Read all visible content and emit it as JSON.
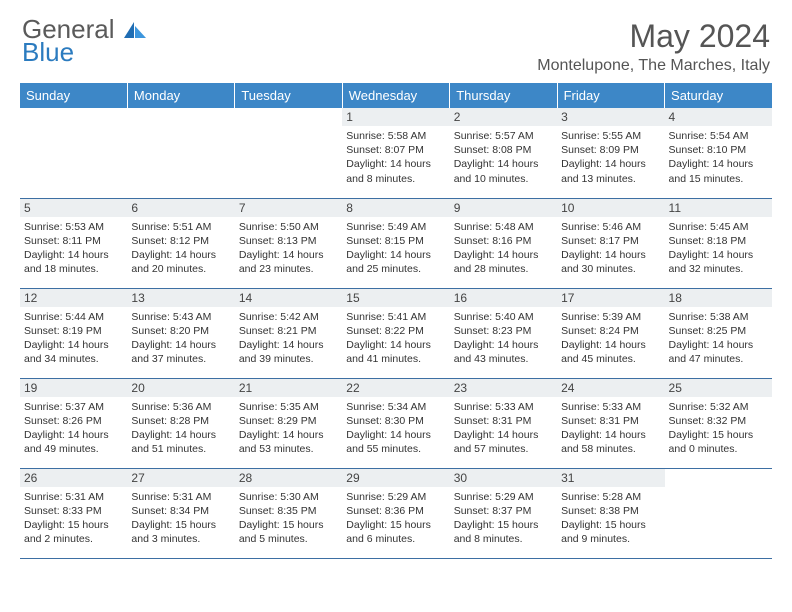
{
  "logo": {
    "line1": "General",
    "line2": "Blue"
  },
  "title": "May 2024",
  "location": "Montelupone, The Marches, Italy",
  "colors": {
    "header_bg": "#3d87c7",
    "header_text": "#ffffff",
    "daynum_bg": "#eceff1",
    "border": "#3d6fa3",
    "logo_gray": "#5a5a5a",
    "logo_blue": "#2b7bbf"
  },
  "weekdays": [
    "Sunday",
    "Monday",
    "Tuesday",
    "Wednesday",
    "Thursday",
    "Friday",
    "Saturday"
  ],
  "weeks": [
    [
      {
        "n": "",
        "sr": "",
        "ss": "",
        "dl": ""
      },
      {
        "n": "",
        "sr": "",
        "ss": "",
        "dl": ""
      },
      {
        "n": "",
        "sr": "",
        "ss": "",
        "dl": ""
      },
      {
        "n": "1",
        "sr": "Sunrise: 5:58 AM",
        "ss": "Sunset: 8:07 PM",
        "dl": "Daylight: 14 hours and 8 minutes."
      },
      {
        "n": "2",
        "sr": "Sunrise: 5:57 AM",
        "ss": "Sunset: 8:08 PM",
        "dl": "Daylight: 14 hours and 10 minutes."
      },
      {
        "n": "3",
        "sr": "Sunrise: 5:55 AM",
        "ss": "Sunset: 8:09 PM",
        "dl": "Daylight: 14 hours and 13 minutes."
      },
      {
        "n": "4",
        "sr": "Sunrise: 5:54 AM",
        "ss": "Sunset: 8:10 PM",
        "dl": "Daylight: 14 hours and 15 minutes."
      }
    ],
    [
      {
        "n": "5",
        "sr": "Sunrise: 5:53 AM",
        "ss": "Sunset: 8:11 PM",
        "dl": "Daylight: 14 hours and 18 minutes."
      },
      {
        "n": "6",
        "sr": "Sunrise: 5:51 AM",
        "ss": "Sunset: 8:12 PM",
        "dl": "Daylight: 14 hours and 20 minutes."
      },
      {
        "n": "7",
        "sr": "Sunrise: 5:50 AM",
        "ss": "Sunset: 8:13 PM",
        "dl": "Daylight: 14 hours and 23 minutes."
      },
      {
        "n": "8",
        "sr": "Sunrise: 5:49 AM",
        "ss": "Sunset: 8:15 PM",
        "dl": "Daylight: 14 hours and 25 minutes."
      },
      {
        "n": "9",
        "sr": "Sunrise: 5:48 AM",
        "ss": "Sunset: 8:16 PM",
        "dl": "Daylight: 14 hours and 28 minutes."
      },
      {
        "n": "10",
        "sr": "Sunrise: 5:46 AM",
        "ss": "Sunset: 8:17 PM",
        "dl": "Daylight: 14 hours and 30 minutes."
      },
      {
        "n": "11",
        "sr": "Sunrise: 5:45 AM",
        "ss": "Sunset: 8:18 PM",
        "dl": "Daylight: 14 hours and 32 minutes."
      }
    ],
    [
      {
        "n": "12",
        "sr": "Sunrise: 5:44 AM",
        "ss": "Sunset: 8:19 PM",
        "dl": "Daylight: 14 hours and 34 minutes."
      },
      {
        "n": "13",
        "sr": "Sunrise: 5:43 AM",
        "ss": "Sunset: 8:20 PM",
        "dl": "Daylight: 14 hours and 37 minutes."
      },
      {
        "n": "14",
        "sr": "Sunrise: 5:42 AM",
        "ss": "Sunset: 8:21 PM",
        "dl": "Daylight: 14 hours and 39 minutes."
      },
      {
        "n": "15",
        "sr": "Sunrise: 5:41 AM",
        "ss": "Sunset: 8:22 PM",
        "dl": "Daylight: 14 hours and 41 minutes."
      },
      {
        "n": "16",
        "sr": "Sunrise: 5:40 AM",
        "ss": "Sunset: 8:23 PM",
        "dl": "Daylight: 14 hours and 43 minutes."
      },
      {
        "n": "17",
        "sr": "Sunrise: 5:39 AM",
        "ss": "Sunset: 8:24 PM",
        "dl": "Daylight: 14 hours and 45 minutes."
      },
      {
        "n": "18",
        "sr": "Sunrise: 5:38 AM",
        "ss": "Sunset: 8:25 PM",
        "dl": "Daylight: 14 hours and 47 minutes."
      }
    ],
    [
      {
        "n": "19",
        "sr": "Sunrise: 5:37 AM",
        "ss": "Sunset: 8:26 PM",
        "dl": "Daylight: 14 hours and 49 minutes."
      },
      {
        "n": "20",
        "sr": "Sunrise: 5:36 AM",
        "ss": "Sunset: 8:28 PM",
        "dl": "Daylight: 14 hours and 51 minutes."
      },
      {
        "n": "21",
        "sr": "Sunrise: 5:35 AM",
        "ss": "Sunset: 8:29 PM",
        "dl": "Daylight: 14 hours and 53 minutes."
      },
      {
        "n": "22",
        "sr": "Sunrise: 5:34 AM",
        "ss": "Sunset: 8:30 PM",
        "dl": "Daylight: 14 hours and 55 minutes."
      },
      {
        "n": "23",
        "sr": "Sunrise: 5:33 AM",
        "ss": "Sunset: 8:31 PM",
        "dl": "Daylight: 14 hours and 57 minutes."
      },
      {
        "n": "24",
        "sr": "Sunrise: 5:33 AM",
        "ss": "Sunset: 8:31 PM",
        "dl": "Daylight: 14 hours and 58 minutes."
      },
      {
        "n": "25",
        "sr": "Sunrise: 5:32 AM",
        "ss": "Sunset: 8:32 PM",
        "dl": "Daylight: 15 hours and 0 minutes."
      }
    ],
    [
      {
        "n": "26",
        "sr": "Sunrise: 5:31 AM",
        "ss": "Sunset: 8:33 PM",
        "dl": "Daylight: 15 hours and 2 minutes."
      },
      {
        "n": "27",
        "sr": "Sunrise: 5:31 AM",
        "ss": "Sunset: 8:34 PM",
        "dl": "Daylight: 15 hours and 3 minutes."
      },
      {
        "n": "28",
        "sr": "Sunrise: 5:30 AM",
        "ss": "Sunset: 8:35 PM",
        "dl": "Daylight: 15 hours and 5 minutes."
      },
      {
        "n": "29",
        "sr": "Sunrise: 5:29 AM",
        "ss": "Sunset: 8:36 PM",
        "dl": "Daylight: 15 hours and 6 minutes."
      },
      {
        "n": "30",
        "sr": "Sunrise: 5:29 AM",
        "ss": "Sunset: 8:37 PM",
        "dl": "Daylight: 15 hours and 8 minutes."
      },
      {
        "n": "31",
        "sr": "Sunrise: 5:28 AM",
        "ss": "Sunset: 8:38 PM",
        "dl": "Daylight: 15 hours and 9 minutes."
      },
      {
        "n": "",
        "sr": "",
        "ss": "",
        "dl": ""
      }
    ]
  ]
}
